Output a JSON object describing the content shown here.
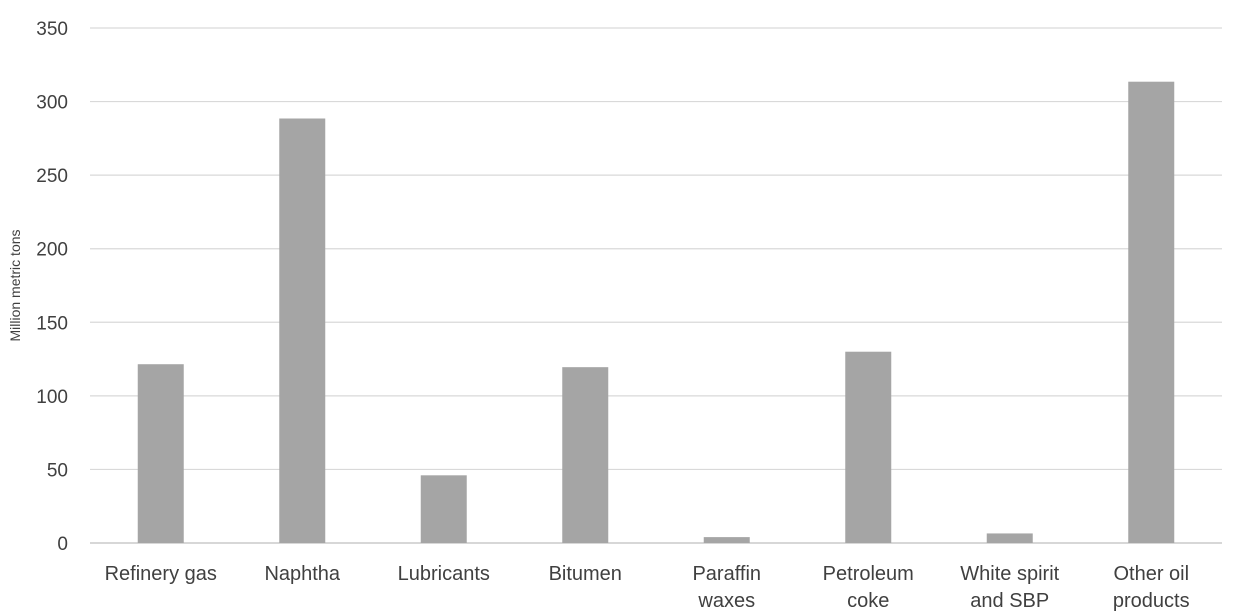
{
  "chart_data": {
    "type": "bar",
    "title": "",
    "xlabel": "",
    "ylabel": "Million metric tons",
    "ylim": [
      0,
      350
    ],
    "ytick_step": 50,
    "grid": true,
    "bar_color": "#a5a5a5",
    "categories": [
      [
        "Refinery gas"
      ],
      [
        "Naphtha"
      ],
      [
        "Lubricants"
      ],
      [
        "Bitumen"
      ],
      [
        "Paraffin",
        "waxes"
      ],
      [
        "Petroleum",
        "coke"
      ],
      [
        "White spirit",
        "and SBP"
      ],
      [
        "Other oil",
        "products"
      ]
    ],
    "values": [
      121.5,
      288.5,
      46,
      119.5,
      4,
      130,
      6.5,
      313.5
    ]
  }
}
